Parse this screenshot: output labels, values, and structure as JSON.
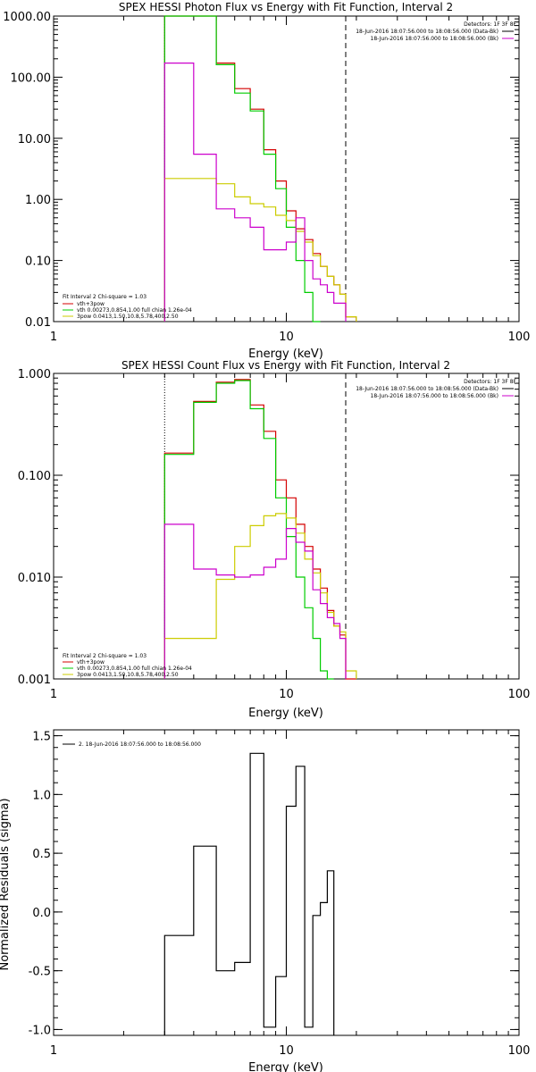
{
  "colors": {
    "total": "#000000",
    "sum": "#d40000",
    "vth": "#00cc00",
    "bpow": "#cccc00",
    "bpow2": "#cc00cc",
    "data": "#000000"
  },
  "chart_data": [
    {
      "type": "line",
      "title": "SPEX HESSI Photon Flux vs Energy with Fit Function, Interval 2",
      "xlabel": "Energy (keV)",
      "ylabel": "",
      "xscale": "log",
      "yscale": "log",
      "xlim": [
        1,
        100
      ],
      "ylim": [
        0.01,
        1000
      ],
      "xticks": [
        "1",
        "10",
        "100"
      ],
      "yticks": [
        "1000.00",
        "100.00",
        "10.00",
        "1.00",
        "0.10",
        "0.01"
      ],
      "vlines": {
        "dotted": 3,
        "dashed": 18
      },
      "edges": [
        3,
        4,
        5,
        6,
        7,
        8,
        9,
        10,
        11,
        12,
        13,
        14,
        15,
        16,
        17,
        18,
        20
      ],
      "legend_right": {
        "line1": "Detectors: 1F 3F 8F",
        "line2": "18-Jun-2016 18:07:56.000 to 18:08:56.000 (Data-Bk)",
        "line3": "18-Jun-2016 18:07:56.000 to 18:08:56.000 (Bk)"
      },
      "legend_left": {
        "head": "Fit Interval 2   Chi-square = 1.03",
        "line1": "vth+3pow",
        "line2": "vth 0.00273,0.854,1.00  full chian 1.26e-04",
        "line3": "3pow 0.0413,1.50,10.8,5.78,400,2.50"
      },
      "series": [
        {
          "name": "vth+3pow",
          "values": [
            1000,
            1000,
            170,
            65,
            30,
            6.5,
            2.0,
            0.65,
            0.33,
            0.22,
            0.13,
            0.08,
            0.055,
            0.04,
            0.028,
            0.012
          ]
        },
        {
          "name": "vth",
          "values": [
            1000,
            1000,
            160,
            55,
            28,
            5.5,
            1.5,
            0.35,
            0.1,
            0.03,
            0.009
          ]
        },
        {
          "name": "3pow",
          "values": [
            2.2,
            2.2,
            1.8,
            1.1,
            0.85,
            0.75,
            0.55,
            0.45,
            0.3,
            0.2,
            0.12,
            0.08,
            0.055,
            0.04,
            0.028,
            0.012
          ]
        },
        {
          "name": "Bk",
          "values": [
            170,
            5.5,
            0.7,
            0.5,
            0.35,
            0.15,
            0.15,
            0.2,
            0.5,
            0.1,
            0.05,
            0.04,
            0.03,
            0.02,
            0.02
          ]
        }
      ]
    },
    {
      "type": "line",
      "title": "SPEX HESSI Count Flux vs Energy with Fit Function, Interval 2",
      "xlabel": "Energy (keV)",
      "ylabel": "",
      "xscale": "log",
      "yscale": "log",
      "xlim": [
        1,
        100
      ],
      "ylim": [
        0.001,
        1
      ],
      "xticks": [
        "1",
        "10",
        "100"
      ],
      "yticks": [
        "1.000",
        "0.100",
        "0.010",
        "0.001"
      ],
      "vlines": {
        "dotted": 3,
        "dashed": 18
      },
      "edges": [
        3,
        4,
        5,
        6,
        7,
        8,
        9,
        10,
        11,
        12,
        13,
        14,
        15,
        16,
        17,
        18,
        20
      ],
      "legend_right": {
        "line1": "Detectors: 1F 3F 8F",
        "line2": "18-Jun-2016 18:07:56.000 to 18:08:56.000 (Data-Bk)",
        "line3": "18-Jun-2016 18:07:56.000 to 18:08:56.000 (Bk)"
      },
      "legend_left": {
        "head": "Fit Interval 2   Chi-square = 1.03",
        "line1": "vth+3pow",
        "line2": "vth 0.00273,0.854,1.00  full chian 1.26e-04",
        "line3": "3pow 0.0413,1.50,10.8,5.78,400,2.50"
      },
      "series": [
        {
          "name": "vth+3pow",
          "values": [
            0.165,
            0.53,
            0.82,
            0.87,
            0.49,
            0.27,
            0.09,
            0.06,
            0.033,
            0.02,
            0.012,
            0.0078,
            0.0047,
            0.0033,
            0.0027,
            0.001
          ]
        },
        {
          "name": "vth",
          "values": [
            0.16,
            0.52,
            0.8,
            0.85,
            0.45,
            0.23,
            0.06,
            0.025,
            0.01,
            0.005,
            0.0025,
            0.0012,
            0.0007
          ]
        },
        {
          "name": "3pow",
          "values": [
            0.0025,
            0.0025,
            0.0095,
            0.02,
            0.032,
            0.04,
            0.042,
            0.038,
            0.027,
            0.015,
            0.011,
            0.007,
            0.0045,
            0.0033,
            0.0029,
            0.0012
          ]
        },
        {
          "name": "Bk",
          "values": [
            0.033,
            0.012,
            0.0105,
            0.01,
            0.0105,
            0.0125,
            0.015,
            0.03,
            0.022,
            0.018,
            0.0075,
            0.0055,
            0.004,
            0.0035,
            0.0025
          ]
        }
      ]
    },
    {
      "type": "line",
      "title": "",
      "xlabel": "Energy (keV)",
      "ylabel": "Normalized Residuals (sigma)",
      "xscale": "log",
      "xlim": [
        1,
        100
      ],
      "ylim": [
        -1.05,
        1.55
      ],
      "xticks": [
        "1",
        "10",
        "100"
      ],
      "yticks": [
        "1.5",
        "1.0",
        "0.5",
        "0.0",
        "-0.5",
        "-1.0"
      ],
      "legend": "2. 18-Jun-2016 18:07:56.000 to 18:08:56.000",
      "edges": [
        3,
        4,
        5,
        6,
        7,
        8,
        9,
        10,
        11,
        12,
        13,
        14,
        15,
        16,
        17,
        18
      ],
      "series": [
        {
          "name": "2. 18-Jun-2016 18:07:56.000 to 18:08:56.000",
          "values": [
            -0.2,
            0.56,
            -0.5,
            -0.43,
            1.35,
            -0.98,
            -0.55,
            0.9,
            1.24,
            -0.98,
            -0.03,
            0.08,
            0.35
          ]
        }
      ]
    }
  ]
}
